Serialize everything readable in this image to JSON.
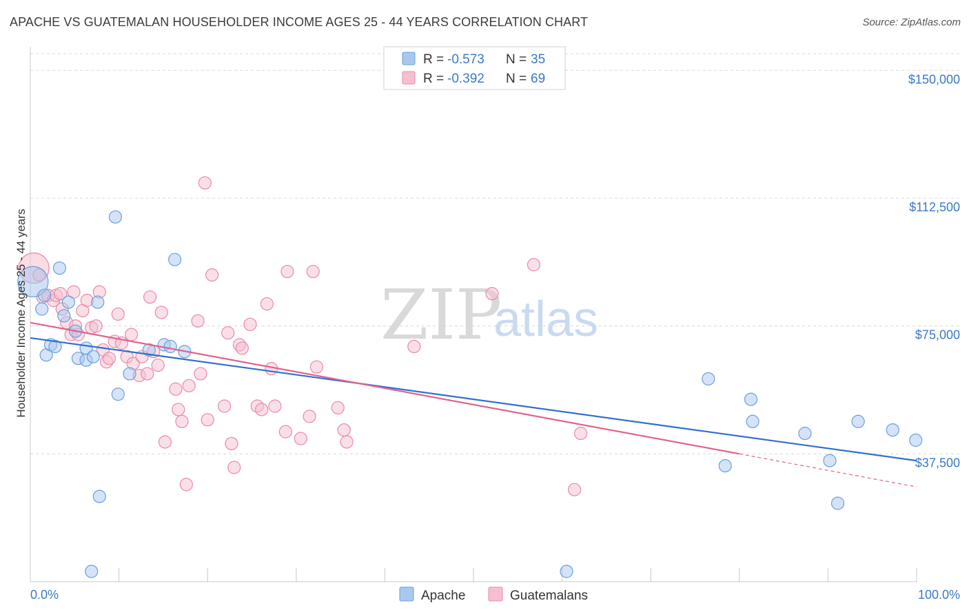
{
  "title": "APACHE VS GUATEMALAN HOUSEHOLDER INCOME AGES 25 - 44 YEARS CORRELATION CHART",
  "source": "Source: ZipAtlas.com",
  "watermark": {
    "zip": "ZIP",
    "atlas": "atlas"
  },
  "colors": {
    "apache_fill": "#a9c8f0",
    "apache_stroke": "#6a9fdc",
    "apache_line": "#2e6fd0",
    "guatemalan_fill": "#f6bfd0",
    "guatemalan_stroke": "#e889a8",
    "guatemalan_line": "#e0628e",
    "accent_text": "#3a78c8",
    "grid": "#d8d8d8"
  },
  "legend": {
    "items": [
      {
        "r_label": "R = ",
        "r_value": "-0.573",
        "n_label": "N = ",
        "n_value": "35"
      },
      {
        "r_label": "R = ",
        "r_value": "-0.392",
        "n_label": "N = ",
        "n_value": "69"
      }
    ]
  },
  "bottom_legend": [
    "Apache",
    "Guatemalans"
  ],
  "chart_data": {
    "type": "scatter",
    "title": "APACHE VS GUATEMALAN HOUSEHOLDER INCOME AGES 25 - 44 YEARS CORRELATION CHART",
    "xlabel": "",
    "ylabel": "Householder Income Ages 25 - 44 years",
    "xlim": [
      0,
      100
    ],
    "ylim": [
      0,
      155000
    ],
    "x_tick_labels": [
      "0.0%",
      "100.0%"
    ],
    "y_ticks": [
      37500,
      75000,
      112500,
      150000
    ],
    "y_tick_labels": [
      "$37,500",
      "$75,000",
      "$112,500",
      "$150,000"
    ],
    "grid": true,
    "legend_position": "top-center",
    "series": [
      {
        "name": "Apache",
        "points": [
          [
            0.3,
            88000,
            3
          ],
          [
            1.3,
            80000,
            1
          ],
          [
            1.6,
            84000,
            1
          ],
          [
            3.3,
            92000,
            1
          ],
          [
            1.8,
            66500,
            1
          ],
          [
            2.3,
            69500,
            1
          ],
          [
            2.8,
            69000,
            1
          ],
          [
            3.8,
            78000,
            1
          ],
          [
            4.3,
            82000,
            1
          ],
          [
            5.1,
            73500,
            1
          ],
          [
            5.4,
            65500,
            1
          ],
          [
            6.3,
            65000,
            1
          ],
          [
            6.3,
            68500,
            1
          ],
          [
            7.6,
            82000,
            1
          ],
          [
            7.1,
            66000,
            1
          ],
          [
            9.6,
            107000,
            1
          ],
          [
            9.9,
            55000,
            1
          ],
          [
            11.2,
            61000,
            1
          ],
          [
            13.4,
            68000,
            1
          ],
          [
            15.1,
            69500,
            1
          ],
          [
            16.3,
            94500,
            1
          ],
          [
            15.8,
            69000,
            1
          ],
          [
            17.4,
            67500,
            1
          ],
          [
            7.8,
            25000,
            1
          ],
          [
            6.9,
            3000,
            1
          ],
          [
            76.5,
            59500,
            1
          ],
          [
            78.4,
            34000,
            1
          ],
          [
            81.3,
            53500,
            1
          ],
          [
            81.5,
            47000,
            1
          ],
          [
            87.4,
            43500,
            1
          ],
          [
            90.2,
            35500,
            1
          ],
          [
            91.1,
            23000,
            1
          ],
          [
            93.4,
            47000,
            1
          ],
          [
            97.3,
            44500,
            1
          ],
          [
            99.9,
            41500,
            1
          ],
          [
            60.5,
            3000,
            1
          ]
        ]
      },
      {
        "name": "Guatemalans",
        "points": [
          [
            0.4,
            92000,
            3
          ],
          [
            1.0,
            90000,
            1
          ],
          [
            1.4,
            83500,
            1
          ],
          [
            2.0,
            84000,
            1
          ],
          [
            2.6,
            82500,
            1
          ],
          [
            2.9,
            84000,
            1
          ],
          [
            3.4,
            84500,
            1
          ],
          [
            3.6,
            80000,
            1
          ],
          [
            4.1,
            76000,
            1
          ],
          [
            4.6,
            72500,
            1
          ],
          [
            4.9,
            85000,
            1
          ],
          [
            5.1,
            75000,
            1
          ],
          [
            5.4,
            72500,
            1
          ],
          [
            5.9,
            79500,
            1
          ],
          [
            6.4,
            82500,
            1
          ],
          [
            6.9,
            74500,
            1
          ],
          [
            7.4,
            75000,
            1
          ],
          [
            7.8,
            85000,
            1
          ],
          [
            8.2,
            68000,
            1
          ],
          [
            8.6,
            64500,
            1
          ],
          [
            8.9,
            65500,
            1
          ],
          [
            9.5,
            70500,
            1
          ],
          [
            9.9,
            78500,
            1
          ],
          [
            10.3,
            70000,
            1
          ],
          [
            10.9,
            66000,
            1
          ],
          [
            11.4,
            72500,
            1
          ],
          [
            11.6,
            64000,
            1
          ],
          [
            12.3,
            60500,
            1
          ],
          [
            12.6,
            66000,
            1
          ],
          [
            13.2,
            61000,
            1
          ],
          [
            13.5,
            83500,
            1
          ],
          [
            13.9,
            67500,
            1
          ],
          [
            14.4,
            63500,
            1
          ],
          [
            14.8,
            79000,
            1
          ],
          [
            15.2,
            41000,
            1
          ],
          [
            16.4,
            56500,
            1
          ],
          [
            16.7,
            50500,
            1
          ],
          [
            17.1,
            47000,
            1
          ],
          [
            17.6,
            28500,
            1
          ],
          [
            17.9,
            57500,
            1
          ],
          [
            18.9,
            76500,
            1
          ],
          [
            19.2,
            61000,
            1
          ],
          [
            19.7,
            117000,
            1
          ],
          [
            20.0,
            47500,
            1
          ],
          [
            20.5,
            90000,
            1
          ],
          [
            21.9,
            51500,
            1
          ],
          [
            22.3,
            73000,
            1
          ],
          [
            22.7,
            40500,
            1
          ],
          [
            23.0,
            33500,
            1
          ],
          [
            23.6,
            69500,
            1
          ],
          [
            23.9,
            68500,
            1
          ],
          [
            24.8,
            75500,
            1
          ],
          [
            25.6,
            51500,
            1
          ],
          [
            26.1,
            50500,
            1
          ],
          [
            26.7,
            81500,
            1
          ],
          [
            27.2,
            62500,
            1
          ],
          [
            27.6,
            51500,
            1
          ],
          [
            28.8,
            44000,
            1
          ],
          [
            29.0,
            91000,
            1
          ],
          [
            30.5,
            42000,
            1
          ],
          [
            31.5,
            48500,
            1
          ],
          [
            31.9,
            91000,
            1
          ],
          [
            32.3,
            63000,
            1
          ],
          [
            34.7,
            51000,
            1
          ],
          [
            35.4,
            44500,
            1
          ],
          [
            35.7,
            41000,
            1
          ],
          [
            43.3,
            69000,
            1
          ],
          [
            52.1,
            84500,
            1
          ],
          [
            56.8,
            93000,
            1
          ],
          [
            61.4,
            27000,
            1
          ],
          [
            62.1,
            43500,
            1
          ]
        ]
      }
    ],
    "trend_lines": [
      {
        "name": "Apache",
        "x": [
          0,
          100
        ],
        "y": [
          71500,
          35500
        ]
      },
      {
        "name": "Guatemalans",
        "x": [
          0,
          80
        ],
        "y": [
          76000,
          37500
        ],
        "dashed_extension_to": [
          100,
          27800
        ]
      }
    ]
  }
}
